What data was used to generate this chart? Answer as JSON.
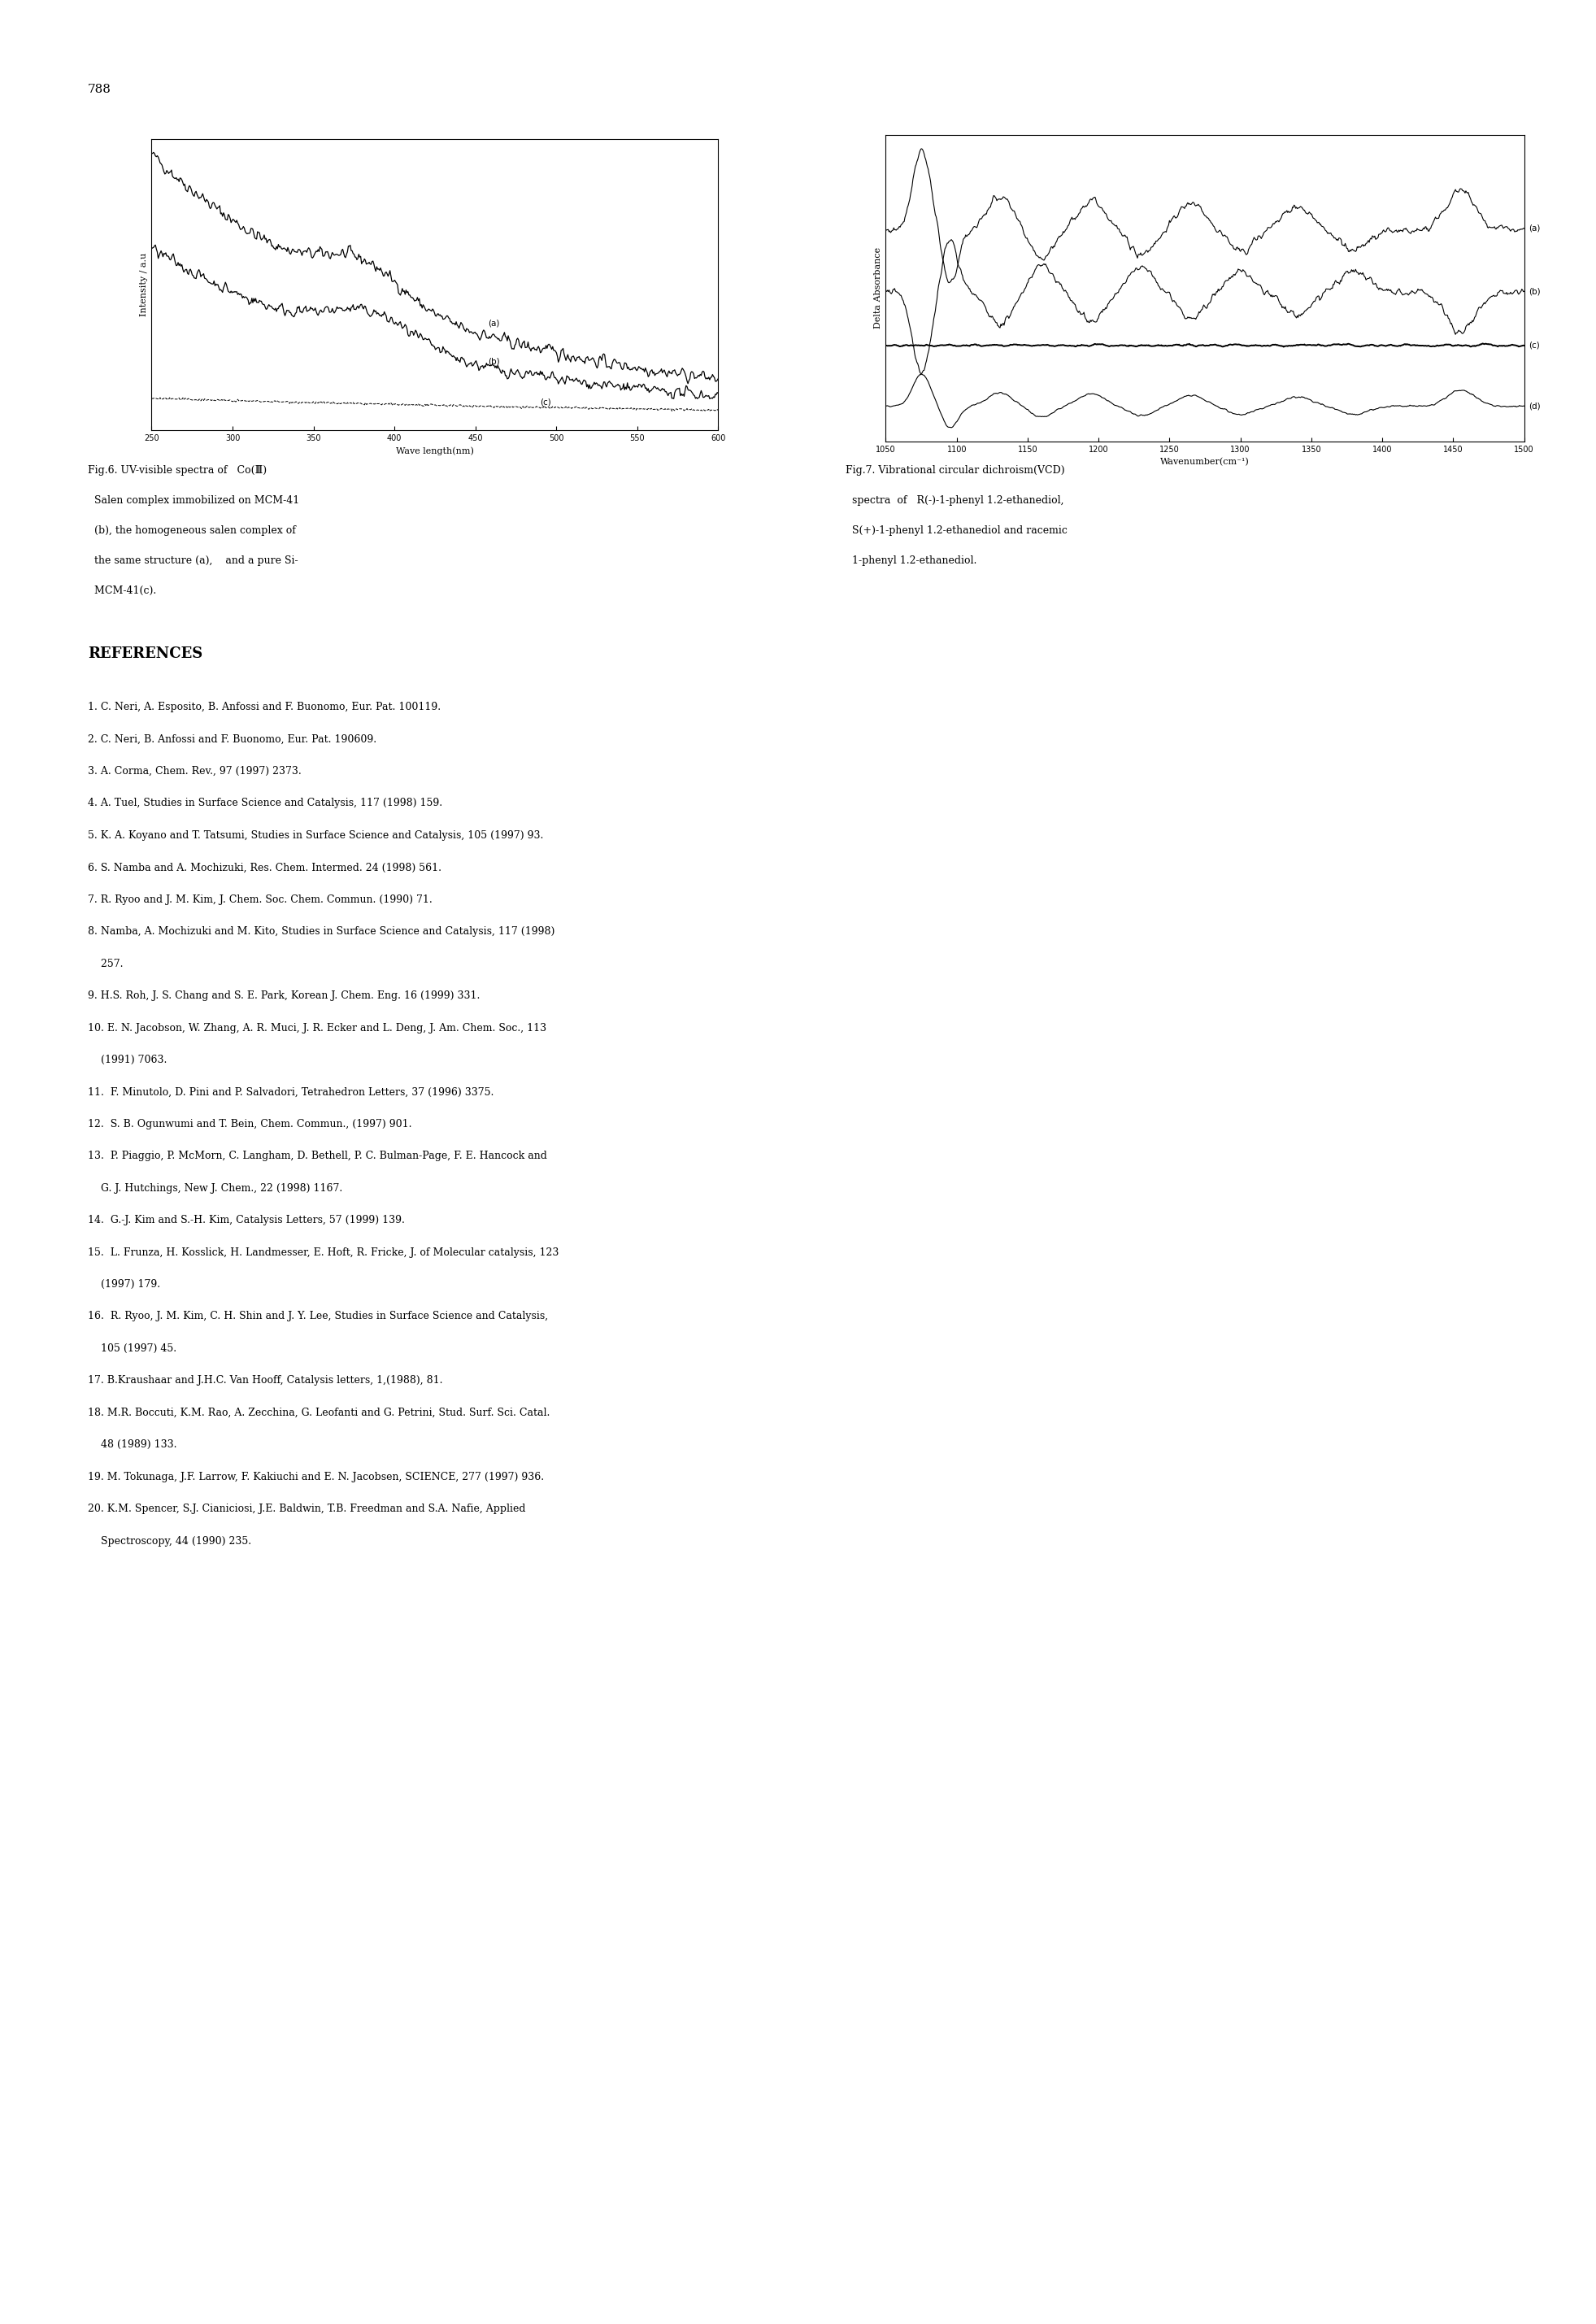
{
  "page_number": "788",
  "background_color": "#ffffff",
  "text_color": "#000000",
  "fig6_xlabel": "Wave length(nm)",
  "fig6_ylabel": "Intensity / a.u",
  "fig6_xlim": [
    250,
    600
  ],
  "fig6_xticks": [
    250,
    300,
    350,
    400,
    450,
    500,
    550,
    600
  ],
  "fig7_xlabel": "Wavenumber(cm⁻¹)",
  "fig7_ylabel": "Delta Absorbance",
  "fig7_xlim": [
    1050,
    1500
  ],
  "fig7_xticks": [
    1050,
    1100,
    1150,
    1200,
    1250,
    1300,
    1350,
    1400,
    1450,
    1500
  ],
  "fig6_caption_lines": [
    "Fig.6. UV-visible spectra of   Co(Ⅲ)",
    "  Salen complex immobilized on MCM-41",
    "  (b), the homogeneous salen complex of",
    "  the same structure (a),    and a pure Si-",
    "  MCM-41(c)."
  ],
  "fig7_caption_lines": [
    "Fig.7. Vibrational circular dichroism(VCD)",
    "  spectra  of   R(-)-1-phenyl 1.2-ethanediol,",
    "  S(+)-1-phenyl 1.2-ethanediol and racemic",
    "  1-phenyl 1.2-ethanediol."
  ],
  "references_title": "REFERENCES",
  "references": [
    "1. C. Neri, A. Esposito, B. Anfossi and F. Buonomo, Eur. Pat. 100119.",
    "2. C. Neri, B. Anfossi and F. Buonomo, Eur. Pat. 190609.",
    "3. A. Corma, Chem. Rev., 97 (1997) 2373.",
    "4. A. Tuel, Studies in Surface Science and Catalysis, 117 (1998) 159.",
    "5. K. A. Koyano and T. Tatsumi, Studies in Surface Science and Catalysis, 105 (1997) 93.",
    "6. S. Namba and A. Mochizuki, Res. Chem. Intermed. 24 (1998) 561.",
    "7. R. Ryoo and J. M. Kim, J. Chem. Soc. Chem. Commun. (1990) 71.",
    "8. Namba, A. Mochizuki and M. Kito, Studies in Surface Science and Catalysis, 117 (1998)",
    "    257.",
    "9. H.S. Roh, J. S. Chang and S. E. Park, Korean J. Chem. Eng. 16 (1999) 331.",
    "10. E. N. Jacobson, W. Zhang, A. R. Muci, J. R. Ecker and L. Deng, J. Am. Chem. Soc., 113",
    "    (1991) 7063.",
    "11.  F. Minutolo, D. Pini and P. Salvadori, Tetrahedron Letters, 37 (1996) 3375.",
    "12.  S. B. Ogunwumi and T. Bein, Chem. Commun., (1997) 901.",
    "13.  P. Piaggio, P. McMorn, C. Langham, D. Bethell, P. C. Bulman-Page, F. E. Hancock and",
    "    G. J. Hutchings, New J. Chem., 22 (1998) 1167.",
    "14.  G.-J. Kim and S.-H. Kim, Catalysis Letters, 57 (1999) 139.",
    "15.  L. Frunza, H. Kosslick, H. Landmesser, E. Hoft, R. Fricke, J. of Molecular catalysis, 123",
    "    (1997) 179.",
    "16.  R. Ryoo, J. M. Kim, C. H. Shin and J. Y. Lee, Studies in Surface Science and Catalysis,",
    "    105 (1997) 45.",
    "17. B.Kraushaar and J.H.C. Van Hooff, Catalysis letters, 1,(1988), 81.",
    "18. M.R. Boccuti, K.M. Rao, A. Zecchina, G. Leofanti and G. Petrini, Stud. Surf. Sci. Catal.",
    "    48 (1989) 133.",
    "19. M. Tokunaga, J.F. Larrow, F. Kakiuchi and E. N. Jacobsen, SCIENCE, 277 (1997) 936.",
    "20. K.M. Spencer, S.J. Cianiciosi, J.E. Baldwin, T.B. Freedman and S.A. Nafie, Applied",
    "    Spectroscopy, 44 (1990) 235."
  ]
}
